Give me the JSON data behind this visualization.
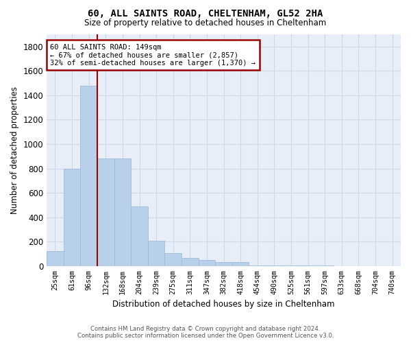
{
  "title": "60, ALL SAINTS ROAD, CHELTENHAM, GL52 2HA",
  "subtitle": "Size of property relative to detached houses in Cheltenham",
  "xlabel": "Distribution of detached houses by size in Cheltenham",
  "ylabel": "Number of detached properties",
  "footer_line1": "Contains HM Land Registry data © Crown copyright and database right 2024.",
  "footer_line2": "Contains public sector information licensed under the Open Government Licence v3.0.",
  "annotation_line1": "60 ALL SAINTS ROAD: 149sqm",
  "annotation_line2": "← 67% of detached houses are smaller (2,857)",
  "annotation_line3": "32% of semi-detached houses are larger (1,370) →",
  "categories": [
    "25sqm",
    "61sqm",
    "96sqm",
    "132sqm",
    "168sqm",
    "204sqm",
    "239sqm",
    "275sqm",
    "311sqm",
    "347sqm",
    "382sqm",
    "418sqm",
    "454sqm",
    "490sqm",
    "525sqm",
    "561sqm",
    "597sqm",
    "633sqm",
    "668sqm",
    "704sqm",
    "740sqm"
  ],
  "values": [
    125,
    800,
    1480,
    880,
    880,
    490,
    205,
    105,
    65,
    50,
    35,
    30,
    5,
    5,
    5,
    3,
    3,
    0,
    0,
    0,
    0
  ],
  "bar_color": "#b8d0ea",
  "bar_edge_color": "#a0bcd8",
  "vline_color": "#990000",
  "annotation_box_edge_color": "#990000",
  "ax_bg_color": "#e8eef8",
  "background_color": "#ffffff",
  "grid_color": "#d0d8e8",
  "ylim": [
    0,
    1900
  ],
  "yticks": [
    0,
    200,
    400,
    600,
    800,
    1000,
    1200,
    1400,
    1600,
    1800
  ],
  "vline_index": 3
}
